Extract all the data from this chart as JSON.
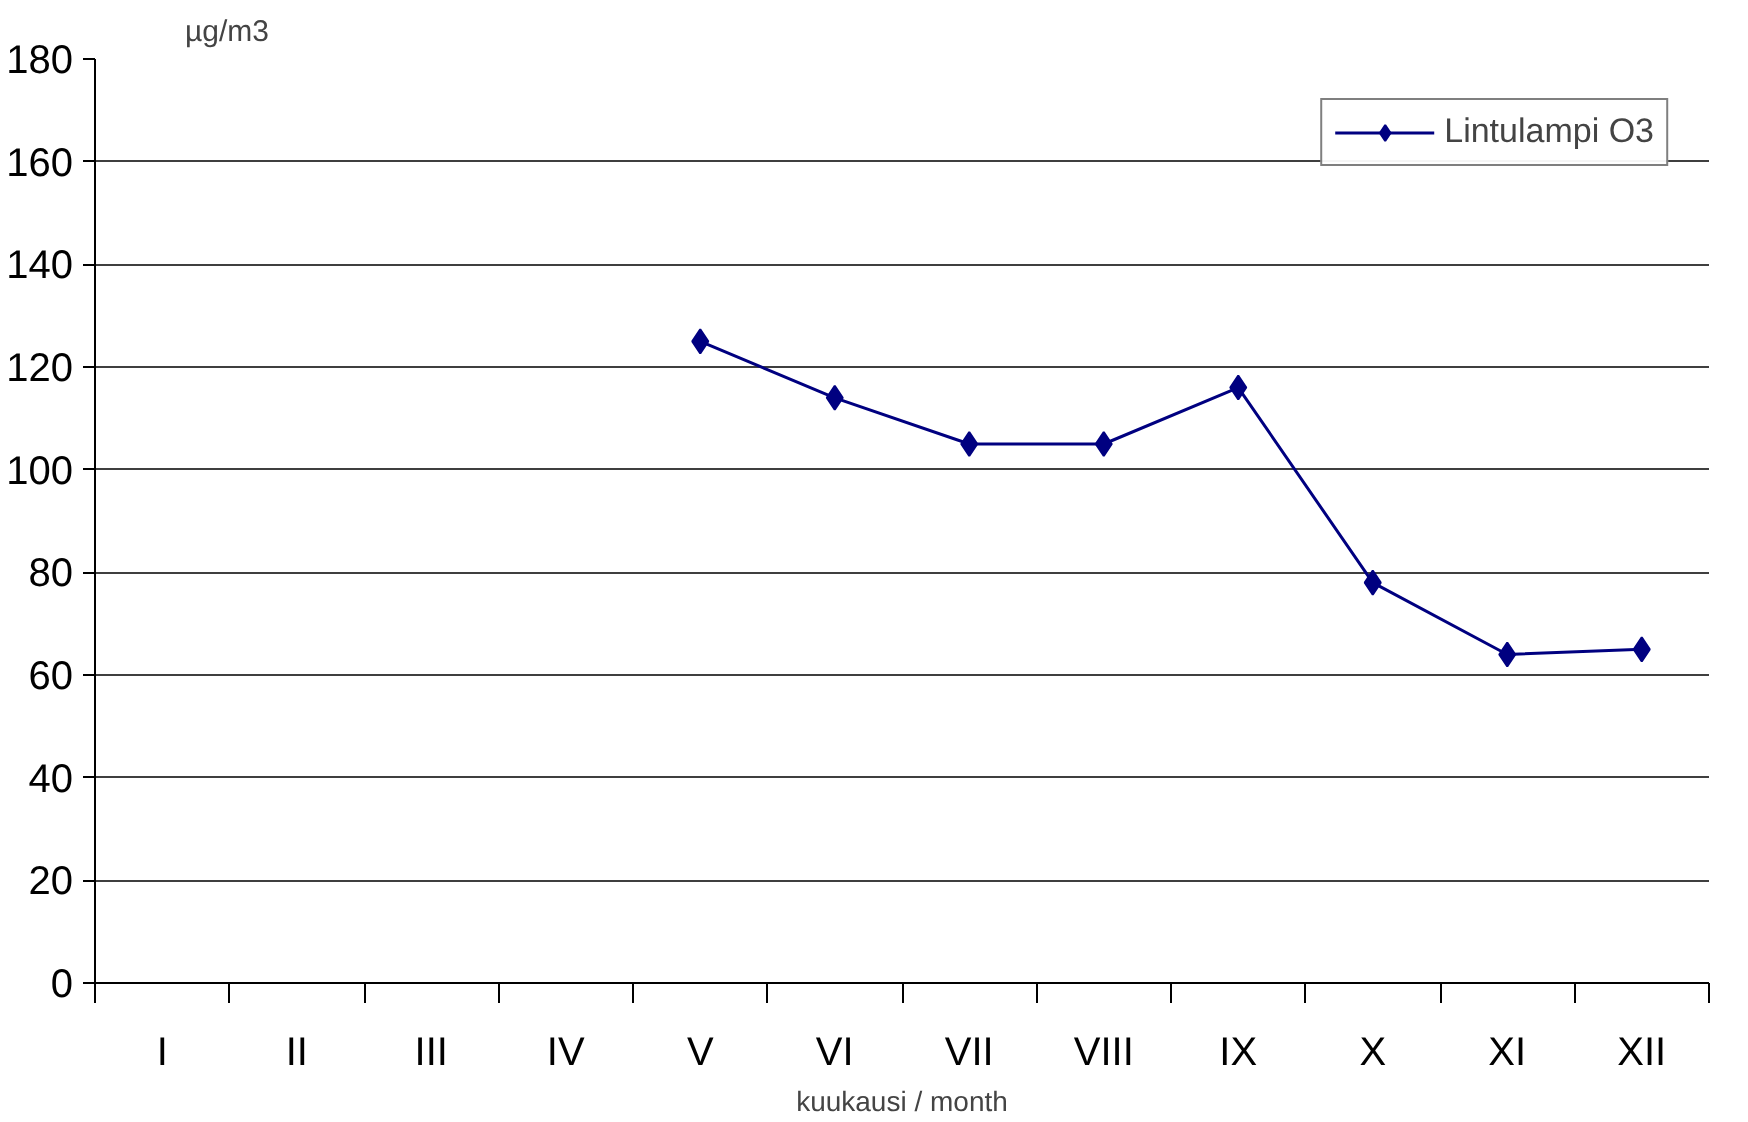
{
  "chart_data": {
    "type": "line",
    "ylabel": "µg/m3",
    "xlabel": "kuukausi / month",
    "categories": [
      "I",
      "II",
      "III",
      "IV",
      "V",
      "VI",
      "VII",
      "VIII",
      "IX",
      "X",
      "XI",
      "XII"
    ],
    "series": [
      {
        "name": "Lintulampi O3",
        "color": "#000080",
        "values": [
          null,
          null,
          null,
          null,
          125,
          114,
          105,
          105,
          116,
          78,
          64,
          65
        ]
      }
    ],
    "ylim": [
      0,
      180
    ],
    "yticks": [
      0,
      20,
      40,
      60,
      80,
      100,
      120,
      140,
      160,
      180
    ],
    "grid": "y",
    "legend": "top right",
    "marker": "diamond",
    "line_style": "solid"
  }
}
